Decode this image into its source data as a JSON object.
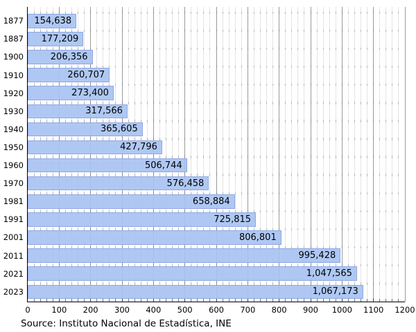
{
  "chart_data": {
    "type": "bar",
    "orientation": "horizontal",
    "title": "",
    "categories": [
      "1877",
      "1887",
      "1900",
      "1910",
      "1920",
      "1930",
      "1940",
      "1950",
      "1960",
      "1970",
      "1981",
      "1991",
      "2001",
      "2011",
      "2021",
      "2023"
    ],
    "values": [
      154638,
      177209,
      206356,
      260707,
      273400,
      317566,
      365605,
      427796,
      506744,
      576458,
      658884,
      725815,
      806801,
      995428,
      1047565,
      1067173
    ],
    "value_labels": [
      "154,638",
      "177,209",
      "206,356",
      "260,707",
      "273,400",
      "317,566",
      "365,605",
      "427,796",
      "506,744",
      "576,458",
      "658,884",
      "725,815",
      "806,801",
      "995,428",
      "1,047,565",
      "1,067,173"
    ],
    "x_ticks": [
      0,
      100,
      200,
      300,
      400,
      500,
      600,
      700,
      800,
      900,
      1000,
      1100,
      1200
    ],
    "xlim": [
      0,
      1200
    ],
    "x_axis_unit_divisor": 1000,
    "minor_tick_step": 20,
    "grid": "on",
    "legend": "none",
    "source": "Source: Instituto Nacional de Estadística, INE",
    "colors": {
      "bar_fill": "#a8c3f2",
      "bar_border": "#8fa7e2",
      "grid_major": "#9a9a9a",
      "grid_minor": "#e4e4e4",
      "tick_minor": "#b5b5b5",
      "tick_major": "#8a8a8a",
      "axis": "#000000",
      "text": "#000000"
    }
  }
}
